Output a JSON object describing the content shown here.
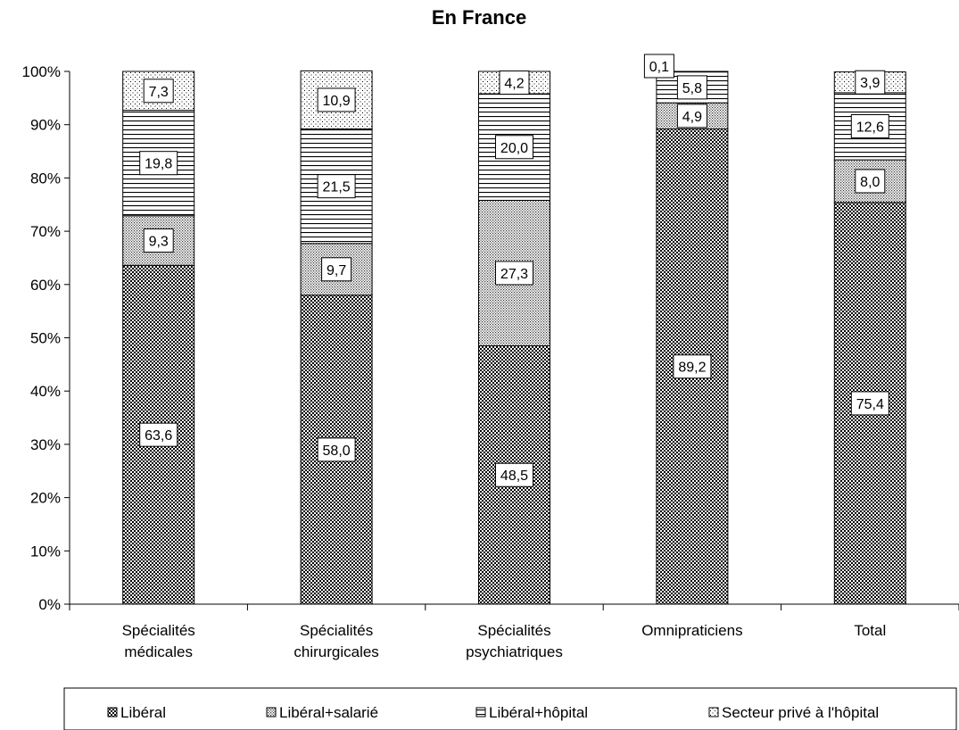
{
  "chart_data": {
    "type": "bar",
    "stacked": true,
    "percent": true,
    "title": "En France",
    "xlabel": "",
    "ylabel": "",
    "ylim": [
      0,
      100
    ],
    "ytick_step": 10,
    "ytick_suffix": "%",
    "grid": false,
    "legend_position": "bottom",
    "categories": [
      [
        "Spécialités",
        "médicales"
      ],
      [
        "Spécialités",
        "chirurgicales"
      ],
      [
        "Spécialités",
        "psychiatriques"
      ],
      [
        "Omnipraticiens"
      ],
      [
        "Total"
      ]
    ],
    "series": [
      {
        "name": "Libéral",
        "pattern": "checker",
        "values": [
          63.6,
          58.0,
          48.5,
          89.2,
          75.4
        ],
        "labels": [
          "63,6",
          "58,0",
          "48,5",
          "89,2",
          "75,4"
        ]
      },
      {
        "name": "Libéral+salarié",
        "pattern": "fine-dots",
        "values": [
          9.3,
          9.7,
          27.3,
          4.9,
          8.0
        ],
        "labels": [
          "9,3",
          "9,7",
          "27,3",
          "4,9",
          "8,0"
        ]
      },
      {
        "name": "Libéral+hôpital",
        "pattern": "horizontal-lines",
        "values": [
          19.8,
          21.5,
          20.0,
          5.8,
          12.6
        ],
        "labels": [
          "19,8",
          "21,5",
          "20,0",
          "5,8",
          "12,6"
        ]
      },
      {
        "name": "Secteur privé à l'hôpital",
        "pattern": "sparse-dots",
        "values": [
          7.3,
          10.9,
          4.2,
          0.1,
          3.9
        ],
        "labels": [
          "7,3",
          "10,9",
          "4,2",
          "0,1",
          "3,9"
        ]
      }
    ]
  }
}
